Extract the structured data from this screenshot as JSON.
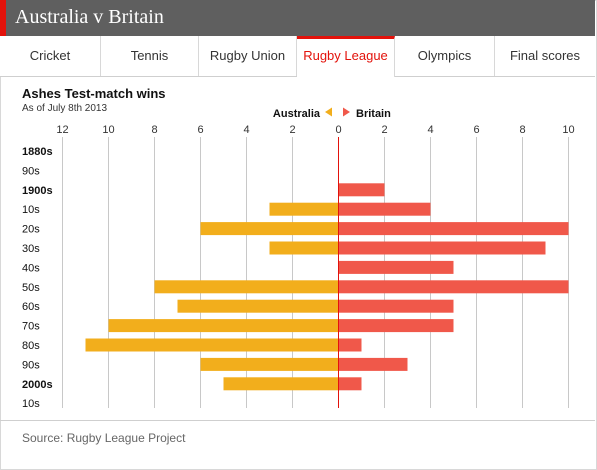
{
  "header": {
    "title": "Australia v Britain"
  },
  "tabs": [
    {
      "label": "Cricket",
      "active": false
    },
    {
      "label": "Tennis",
      "active": false
    },
    {
      "label": "Rugby Union",
      "active": false
    },
    {
      "label": "Rugby League",
      "active": true
    },
    {
      "label": "Olympics",
      "active": false
    },
    {
      "label": "Final scores",
      "active": false
    }
  ],
  "footer": {
    "source": "Source: Rugby League Project"
  },
  "colors": {
    "australia": "#f2ae1c",
    "britain": "#f0584a",
    "accent": "#e3120b",
    "header_bg": "#5f5f5f"
  },
  "chart_data": {
    "type": "bar",
    "title": "Ashes Test-match wins",
    "subtitle": "As of July 8th 2013",
    "legend": {
      "left_label": "Australia",
      "right_label": "Britain",
      "placement": "top-center"
    },
    "categories": [
      "1880s",
      "90s",
      "1900s",
      "10s",
      "20s",
      "30s",
      "40s",
      "50s",
      "60s",
      "70s",
      "80s",
      "90s",
      "2000s",
      "10s"
    ],
    "bold_categories": [
      "1880s",
      "1900s",
      "2000s"
    ],
    "series": [
      {
        "name": "Australia",
        "values": [
          0,
          0,
          0,
          3,
          6,
          3,
          0,
          8,
          7,
          10,
          11,
          6,
          5,
          0
        ]
      },
      {
        "name": "Britain",
        "values": [
          0,
          0,
          2,
          4,
          10,
          9,
          5,
          10,
          5,
          5,
          1,
          3,
          1,
          0
        ]
      }
    ],
    "x_ticks_left": [
      12,
      10,
      8,
      6,
      4,
      2
    ],
    "x_ticks_right": [
      0,
      2,
      4,
      6,
      8,
      10
    ],
    "xlim_left": [
      0,
      12
    ],
    "xlim_right": [
      0,
      10
    ],
    "grid": true
  }
}
